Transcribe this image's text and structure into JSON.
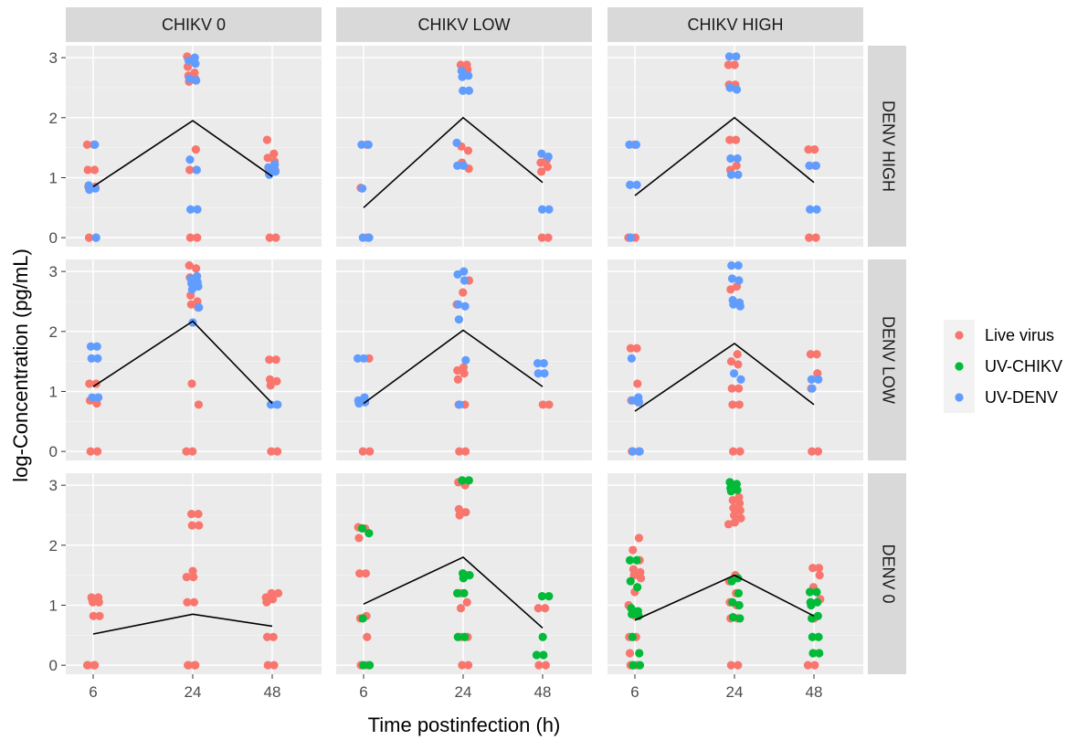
{
  "chart_data": {
    "type": "scatter",
    "xlabel": "Time postinfection (h)",
    "ylabel": "log-Concentration (pg/mL)",
    "x_ticks": [
      6,
      24,
      48
    ],
    "y_ticks": [
      0,
      1,
      2,
      3
    ],
    "ylim": [
      -0.15,
      3.2
    ],
    "columns": [
      "CHIKV 0",
      "CHIKV LOW",
      "CHIKV HIGH"
    ],
    "rows": [
      "DENV HIGH",
      "DENV LOW",
      "DENV 0"
    ],
    "legend": {
      "position": "right",
      "entries": [
        {
          "label": "Live virus",
          "color": "#F8766D"
        },
        {
          "label": "UV-CHIKV",
          "color": "#00BA38"
        },
        {
          "label": "UV-DENV",
          "color": "#619CFF"
        }
      ]
    },
    "panels": [
      {
        "row": "DENV HIGH",
        "col": "CHIKV 0",
        "mean_line": [
          0.85,
          1.95,
          1.02
        ],
        "points": {
          "Live virus": {
            "6": [
              1.55,
              1.55,
              1.13,
              1.13,
              0.85,
              0.85,
              0,
              0
            ],
            "24": [
              3.02,
              2.97,
              2.85,
              2.75,
              2.7,
              2.65,
              2.6,
              1.47,
              1.13,
              1.13,
              0,
              0
            ],
            "48": [
              1.63,
              1.4,
              1.33,
              1.27,
              1.17,
              1.13,
              1.07,
              0,
              0
            ]
          },
          "UV-DENV": {
            "6": [
              1.55,
              0.87,
              0.82,
              0.8,
              0
            ],
            "24": [
              3.0,
              2.95,
              2.9,
              2.65,
              2.62,
              1.3,
              1.13,
              0.47,
              0.47
            ],
            "48": [
              1.22,
              1.17,
              1.1,
              1.05
            ]
          }
        }
      },
      {
        "row": "DENV HIGH",
        "col": "CHIKV LOW",
        "mean_line": [
          0.5,
          2.0,
          0.92
        ],
        "points": {
          "Live virus": {
            "6": [
              1.55,
              0.83,
              0
            ],
            "24": [
              2.88,
              2.88,
              2.8,
              1.52,
              1.45,
              1.25,
              1.15
            ],
            "48": [
              1.3,
              1.25,
              1.18,
              1.1,
              0,
              0
            ]
          },
          "UV-DENV": {
            "6": [
              1.55,
              1.55,
              0.82,
              0,
              0
            ],
            "24": [
              2.78,
              2.7,
              2.68,
              2.45,
              2.45,
              1.58,
              1.2,
              1.2
            ],
            "48": [
              1.4,
              1.35,
              0.47,
              0.47
            ]
          }
        }
      },
      {
        "row": "DENV HIGH",
        "col": "CHIKV HIGH",
        "mean_line": [
          0.7,
          2.0,
          0.92
        ],
        "points": {
          "Live virus": {
            "6": [
              1.55,
              0,
              0
            ],
            "24": [
              2.88,
              2.88,
              2.55,
              2.55,
              1.63,
              1.63,
              1.2,
              1.13
            ],
            "48": [
              1.47,
              1.47,
              1.2,
              0,
              0
            ]
          },
          "UV-DENV": {
            "6": [
              1.55,
              1.55,
              0.88,
              0.88,
              0
            ],
            "24": [
              3.02,
              3.02,
              2.5,
              2.47,
              1.32,
              1.32,
              1.05,
              1.05
            ],
            "48": [
              1.2,
              1.2,
              0.47,
              0.47
            ]
          }
        }
      },
      {
        "row": "DENV LOW",
        "col": "CHIKV 0",
        "mean_line": [
          1.08,
          2.17,
          0.8
        ],
        "points": {
          "Live virus": {
            "6": [
              1.13,
              1.13,
              0.85,
              0.8,
              0,
              0
            ],
            "24": [
              3.1,
              3.05,
              2.9,
              2.85,
              2.6,
              2.5,
              2.45,
              2.4,
              1.13,
              0.78,
              0,
              0
            ],
            "48": [
              1.53,
              1.53,
              1.2,
              1.17,
              1.1,
              0,
              0
            ]
          },
          "UV-DENV": {
            "6": [
              1.75,
              1.75,
              1.55,
              1.55,
              0.9,
              0.9
            ],
            "24": [
              2.92,
              2.88,
              2.82,
              2.8,
              2.75,
              2.7,
              2.4,
              2.15
            ],
            "48": [
              0.78,
              0.78,
              0.78
            ]
          }
        }
      },
      {
        "row": "DENV LOW",
        "col": "CHIKV LOW",
        "mean_line": [
          0.8,
          2.02,
          1.08
        ],
        "points": {
          "Live virus": {
            "6": [
              1.55,
              0,
              0
            ],
            "24": [
              2.85,
              2.65,
              2.45,
              1.4,
              1.35,
              1.3,
              1.2,
              0.78,
              0.78,
              0,
              0
            ],
            "48": [
              0.78,
              0.78
            ]
          },
          "UV-DENV": {
            "6": [
              1.55,
              1.55,
              0.9,
              0.85,
              0.82,
              0.8
            ],
            "24": [
              3.0,
              2.95,
              2.85,
              2.45,
              2.42,
              2.2,
              1.52,
              0.78
            ],
            "48": [
              1.47,
              1.47,
              1.3,
              1.3
            ]
          }
        }
      },
      {
        "row": "DENV LOW",
        "col": "CHIKV HIGH",
        "mean_line": [
          0.67,
          1.8,
          0.78
        ],
        "points": {
          "Live virus": {
            "6": [
              1.72,
              1.72,
              1.13,
              0.85,
              0.82,
              0,
              0
            ],
            "24": [
              2.75,
              2.7,
              1.62,
              1.5,
              1.45,
              1.05,
              1.05,
              0.78,
              0.78,
              0,
              0
            ],
            "48": [
              1.62,
              1.62,
              1.3,
              1.05,
              0,
              0
            ]
          },
          "UV-DENV": {
            "6": [
              1.55,
              0.9,
              0.85,
              0.82,
              0,
              0
            ],
            "24": [
              3.1,
              3.1,
              2.88,
              2.85,
              2.52,
              2.48,
              2.45,
              2.42,
              1.3,
              1.2
            ],
            "48": [
              1.2,
              1.2,
              1.05
            ]
          }
        }
      },
      {
        "row": "DENV 0",
        "col": "CHIKV 0",
        "mean_line": [
          0.52,
          0.85,
          0.65
        ],
        "points": {
          "Live virus": {
            "6": [
              1.13,
              1.13,
              1.1,
              1.05,
              1.05,
              0.82,
              0.82,
              0,
              0,
              0,
              0
            ],
            "24": [
              2.52,
              2.52,
              2.33,
              2.33,
              1.57,
              1.47,
              1.47,
              1.05,
              1.05,
              0,
              0,
              0,
              0
            ],
            "48": [
              1.2,
              1.2,
              1.15,
              1.13,
              1.1,
              1.05,
              0.47,
              0.47,
              0,
              0
            ]
          }
        }
      },
      {
        "row": "DENV 0",
        "col": "CHIKV LOW",
        "mean_line": [
          1.02,
          1.8,
          0.62
        ],
        "points": {
          "Live virus": {
            "6": [
              2.3,
              2.28,
              2.12,
              1.53,
              1.53,
              0.82,
              0.78,
              0.47,
              0,
              0
            ],
            "24": [
              3.05,
              3.0,
              2.6,
              2.55,
              2.5,
              1.5,
              1.2,
              1.05,
              0.95,
              0.47,
              0.47,
              0,
              0
            ],
            "48": [
              0.95,
              0.95,
              0,
              0
            ]
          },
          "UV-CHIKV": {
            "6": [
              2.28,
              2.2,
              0.78,
              0,
              0
            ],
            "24": [
              3.08,
              3.08,
              1.53,
              1.5,
              1.45,
              1.2,
              1.2,
              0.47,
              0.47
            ],
            "48": [
              1.15,
              1.15,
              0.47,
              0.17,
              0.17
            ]
          }
        }
      },
      {
        "row": "DENV 0",
        "col": "CHIKV HIGH",
        "mean_line": [
          0.75,
          1.5,
          0.82
        ],
        "points": {
          "Live virus": {
            "6": [
              2.12,
              1.92,
              1.75,
              1.6,
              1.55,
              1.5,
              1.45,
              1.22,
              1.0,
              0.82,
              0.47,
              0.47,
              0.2,
              0,
              0
            ],
            "24": [
              2.8,
              2.75,
              2.7,
              2.62,
              2.58,
              2.5,
              2.45,
              2.38,
              2.35,
              1.5,
              1.4,
              1.2,
              1.05,
              1.0,
              0.78,
              0.78,
              0,
              0
            ],
            "48": [
              1.62,
              1.62,
              1.5,
              1.3,
              1.1,
              0.78,
              0,
              0
            ]
          },
          "UV-CHIKV": {
            "6": [
              1.75,
              1.75,
              1.4,
              1.3,
              0.95,
              0.9,
              0.85,
              0.82,
              0.47,
              0.2,
              0,
              0
            ],
            "24": [
              3.05,
              3.02,
              2.95,
              2.92,
              2.9,
              1.45,
              1.4,
              1.2,
              1.05,
              1.0,
              0.8,
              0.78
            ],
            "48": [
              1.22,
              1.22,
              1.05,
              1.05,
              1.0,
              0.82,
              0.78,
              0.47,
              0.47,
              0.2,
              0.2
            ]
          }
        }
      }
    ]
  }
}
